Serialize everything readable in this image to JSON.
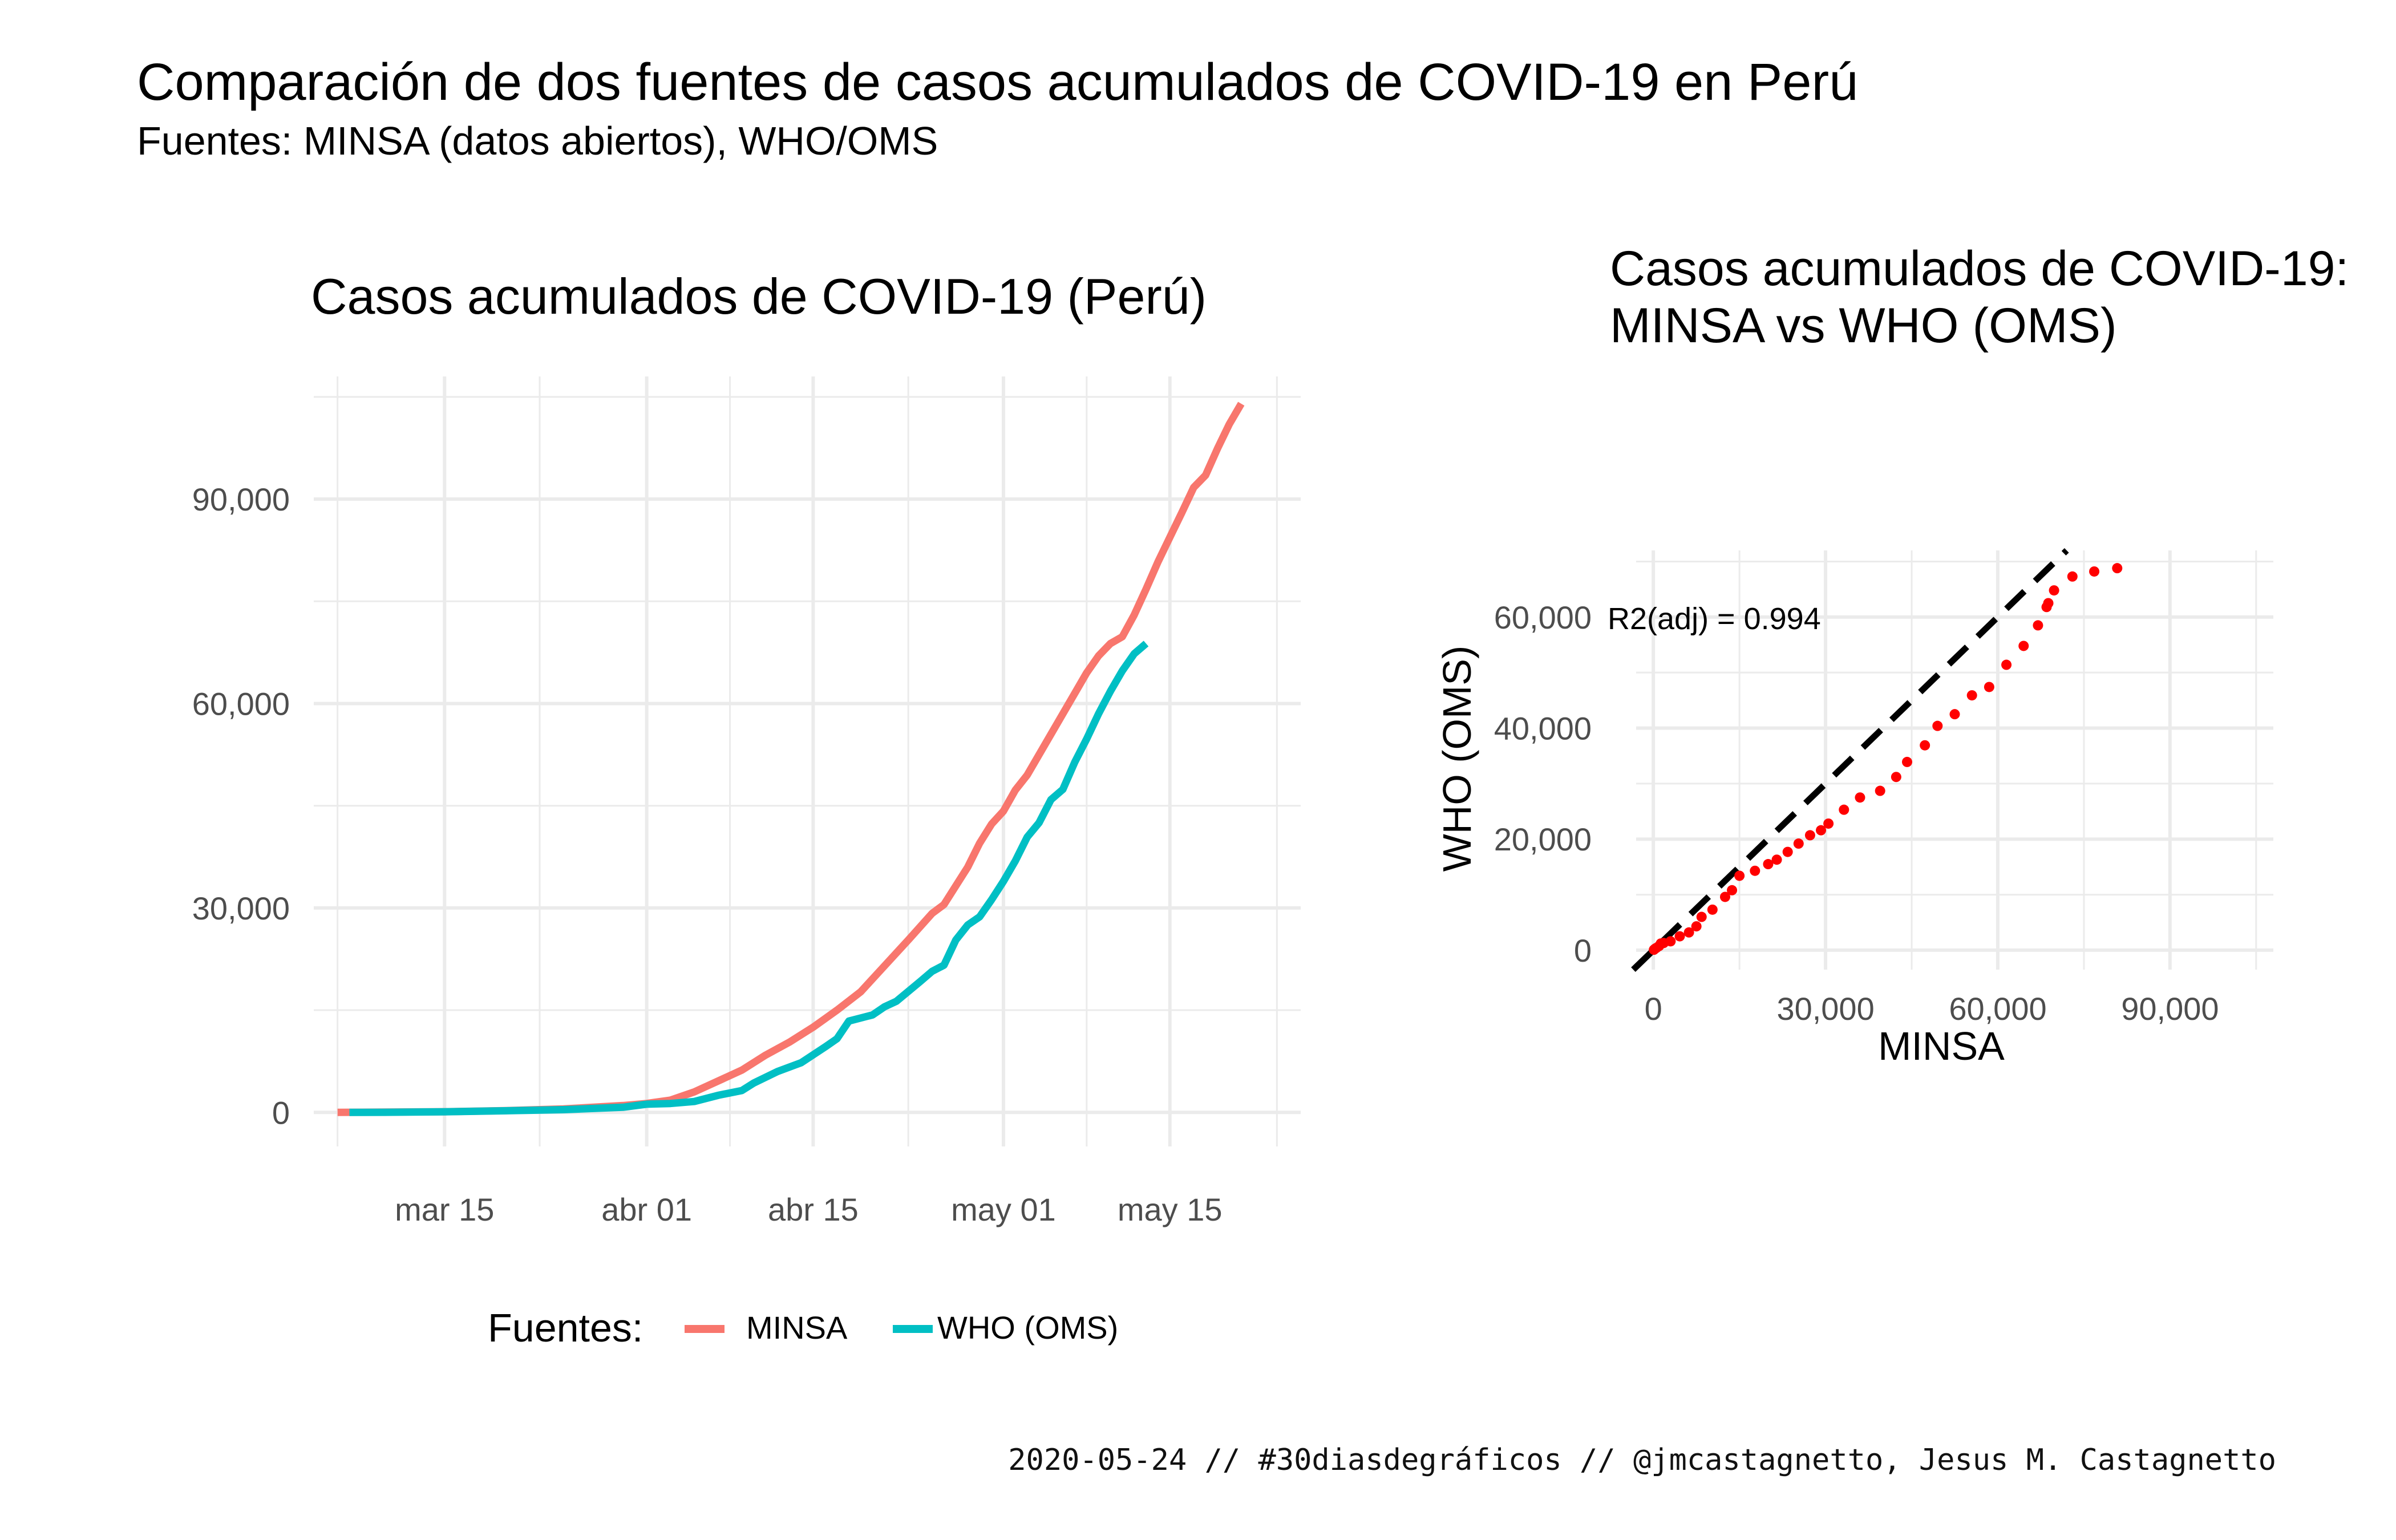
{
  "title": "Comparación de dos fuentes de casos acumulados de COVID-19 en Perú",
  "subtitle": "Fuentes: MINSA (datos abiertos), WHO/OMS",
  "caption": "2020-05-24 // #30diasdegráficos // @jmcastagnetto, Jesus M. Castagnetto",
  "colors": {
    "minsa": "#F8766D",
    "who": "#00BFC4",
    "scatter": "#FF0000",
    "ref_line": "#000000",
    "grid": "#EBEBEB"
  },
  "chart_data": [
    {
      "type": "line",
      "title": "Casos acumulados de COVID-19 (Perú)",
      "xlabel": "",
      "ylabel": "",
      "x_type": "date",
      "xlim": [
        "2020-03-04",
        "2020-05-26"
      ],
      "ylim": [
        -5000,
        108000
      ],
      "x_ticks": [
        {
          "date": "2020-03-15",
          "label": "mar 15"
        },
        {
          "date": "2020-04-01",
          "label": "abr 01"
        },
        {
          "date": "2020-04-15",
          "label": "abr 15"
        },
        {
          "date": "2020-05-01",
          "label": "may 01"
        },
        {
          "date": "2020-05-15",
          "label": "may 15"
        }
      ],
      "y_ticks": [
        0,
        30000,
        60000,
        90000
      ],
      "y_tick_labels": [
        "0",
        "30,000",
        "60,000",
        "90,000"
      ],
      "grid": true,
      "legend": {
        "title": "Fuentes:",
        "position": "bottom",
        "entries": [
          "MINSA",
          "WHO (OMS)"
        ]
      },
      "series": [
        {
          "name": "MINSA",
          "color": "#F8766D",
          "points": [
            [
              "2020-03-06",
              0
            ],
            [
              "2020-03-10",
              50
            ],
            [
              "2020-03-15",
              100
            ],
            [
              "2020-03-20",
              250
            ],
            [
              "2020-03-25",
              500
            ],
            [
              "2020-03-30",
              1000
            ],
            [
              "2020-04-01",
              1300
            ],
            [
              "2020-04-03",
              1800
            ],
            [
              "2020-04-05",
              3000
            ],
            [
              "2020-04-07",
              4600
            ],
            [
              "2020-04-09",
              6200
            ],
            [
              "2020-04-11",
              8400
            ],
            [
              "2020-04-13",
              10300
            ],
            [
              "2020-04-15",
              12500
            ],
            [
              "2020-04-17",
              15000
            ],
            [
              "2020-04-19",
              17700
            ],
            [
              "2020-04-21",
              21500
            ],
            [
              "2020-04-23",
              25300
            ],
            [
              "2020-04-25",
              29200
            ],
            [
              "2020-04-26",
              30500
            ],
            [
              "2020-04-28",
              36000
            ],
            [
              "2020-04-29",
              39500
            ],
            [
              "2020-04-30",
              42300
            ],
            [
              "2020-05-01",
              44200
            ],
            [
              "2020-05-02",
              47300
            ],
            [
              "2020-05-03",
              49500
            ],
            [
              "2020-05-05",
              55500
            ],
            [
              "2020-05-07",
              61500
            ],
            [
              "2020-05-08",
              64500
            ],
            [
              "2020-05-09",
              67000
            ],
            [
              "2020-05-10",
              68800
            ],
            [
              "2020-05-11",
              69800
            ],
            [
              "2020-05-12",
              73000
            ],
            [
              "2020-05-13",
              76800
            ],
            [
              "2020-05-14",
              80800
            ],
            [
              "2020-05-15",
              84400
            ],
            [
              "2020-05-16",
              88000
            ],
            [
              "2020-05-17",
              91700
            ],
            [
              "2020-05-18",
              93500
            ],
            [
              "2020-05-19",
              97400
            ],
            [
              "2020-05-20",
              101000
            ],
            [
              "2020-05-21",
              104000
            ]
          ]
        },
        {
          "name": "WHO (OMS)",
          "color": "#00BFC4",
          "points": [
            [
              "2020-03-07",
              0
            ],
            [
              "2020-03-10",
              10
            ],
            [
              "2020-03-15",
              80
            ],
            [
              "2020-03-20",
              230
            ],
            [
              "2020-03-25",
              400
            ],
            [
              "2020-03-30",
              750
            ],
            [
              "2020-04-01",
              1200
            ],
            [
              "2020-04-03",
              1300
            ],
            [
              "2020-04-05",
              1600
            ],
            [
              "2020-04-07",
              2500
            ],
            [
              "2020-04-09",
              3200
            ],
            [
              "2020-04-10",
              4300
            ],
            [
              "2020-04-12",
              6000
            ],
            [
              "2020-04-14",
              7300
            ],
            [
              "2020-04-16",
              9600
            ],
            [
              "2020-04-17",
              10800
            ],
            [
              "2020-04-18",
              13400
            ],
            [
              "2020-04-20",
              14300
            ],
            [
              "2020-04-21",
              15500
            ],
            [
              "2020-04-22",
              16300
            ],
            [
              "2020-04-24",
              19200
            ],
            [
              "2020-04-25",
              20700
            ],
            [
              "2020-04-26",
              21600
            ],
            [
              "2020-04-27",
              25300
            ],
            [
              "2020-04-28",
              27500
            ],
            [
              "2020-04-29",
              28700
            ],
            [
              "2020-04-30",
              31200
            ],
            [
              "2020-05-01",
              33900
            ],
            [
              "2020-05-02",
              36900
            ],
            [
              "2020-05-03",
              40400
            ],
            [
              "2020-05-04",
              42500
            ],
            [
              "2020-05-05",
              45900
            ],
            [
              "2020-05-06",
              47400
            ],
            [
              "2020-05-07",
              51400
            ],
            [
              "2020-05-08",
              54800
            ],
            [
              "2020-05-09",
              58500
            ],
            [
              "2020-05-10",
              61800
            ],
            [
              "2020-05-11",
              64800
            ],
            [
              "2020-05-12",
              67300
            ],
            [
              "2020-05-13",
              68800
            ]
          ]
        }
      ]
    },
    {
      "type": "scatter",
      "title_lines": [
        "Casos acumulados de COVID-19:",
        "MINSA vs WHO (OMS)"
      ],
      "xlabel": "MINSA",
      "ylabel": "WHO (OMS)",
      "xlim": [
        -3000,
        108000
      ],
      "ylim": [
        -3500,
        72000
      ],
      "x_ticks": [
        0,
        30000,
        60000,
        90000
      ],
      "x_tick_labels": [
        "0",
        "30,000",
        "60,000",
        "90,000"
      ],
      "y_ticks": [
        0,
        20000,
        40000,
        60000
      ],
      "y_tick_labels": [
        "0",
        "20,000",
        "40,000",
        "60,000"
      ],
      "grid": true,
      "annotation": "R2(adj) = 0.994",
      "reference_line": {
        "style": "dashed",
        "slope": 1,
        "intercept": 0
      },
      "color": "#FF0000",
      "points": [
        [
          100,
          80
        ],
        [
          250,
          230
        ],
        [
          500,
          400
        ],
        [
          1000,
          750
        ],
        [
          1300,
          1200
        ],
        [
          1800,
          1300
        ],
        [
          3000,
          1600
        ],
        [
          4600,
          2500
        ],
        [
          6200,
          3200
        ],
        [
          7500,
          4300
        ],
        [
          8400,
          6000
        ],
        [
          10300,
          7300
        ],
        [
          12500,
          9600
        ],
        [
          13700,
          10800
        ],
        [
          15000,
          13400
        ],
        [
          17700,
          14300
        ],
        [
          20000,
          15500
        ],
        [
          21500,
          16300
        ],
        [
          23400,
          17700
        ],
        [
          25300,
          19200
        ],
        [
          27300,
          20700
        ],
        [
          29200,
          21600
        ],
        [
          30500,
          22800
        ],
        [
          33200,
          25300
        ],
        [
          36000,
          27500
        ],
        [
          39500,
          28700
        ],
        [
          42300,
          31200
        ],
        [
          44200,
          33900
        ],
        [
          47300,
          36900
        ],
        [
          49500,
          40400
        ],
        [
          52500,
          42500
        ],
        [
          55500,
          45900
        ],
        [
          58500,
          47400
        ],
        [
          61500,
          51400
        ],
        [
          64500,
          54800
        ],
        [
          67000,
          58500
        ],
        [
          68500,
          61800
        ],
        [
          68800,
          62500
        ],
        [
          69800,
          64800
        ],
        [
          73000,
          67300
        ],
        [
          76800,
          68200
        ],
        [
          80800,
          68800
        ]
      ]
    }
  ]
}
